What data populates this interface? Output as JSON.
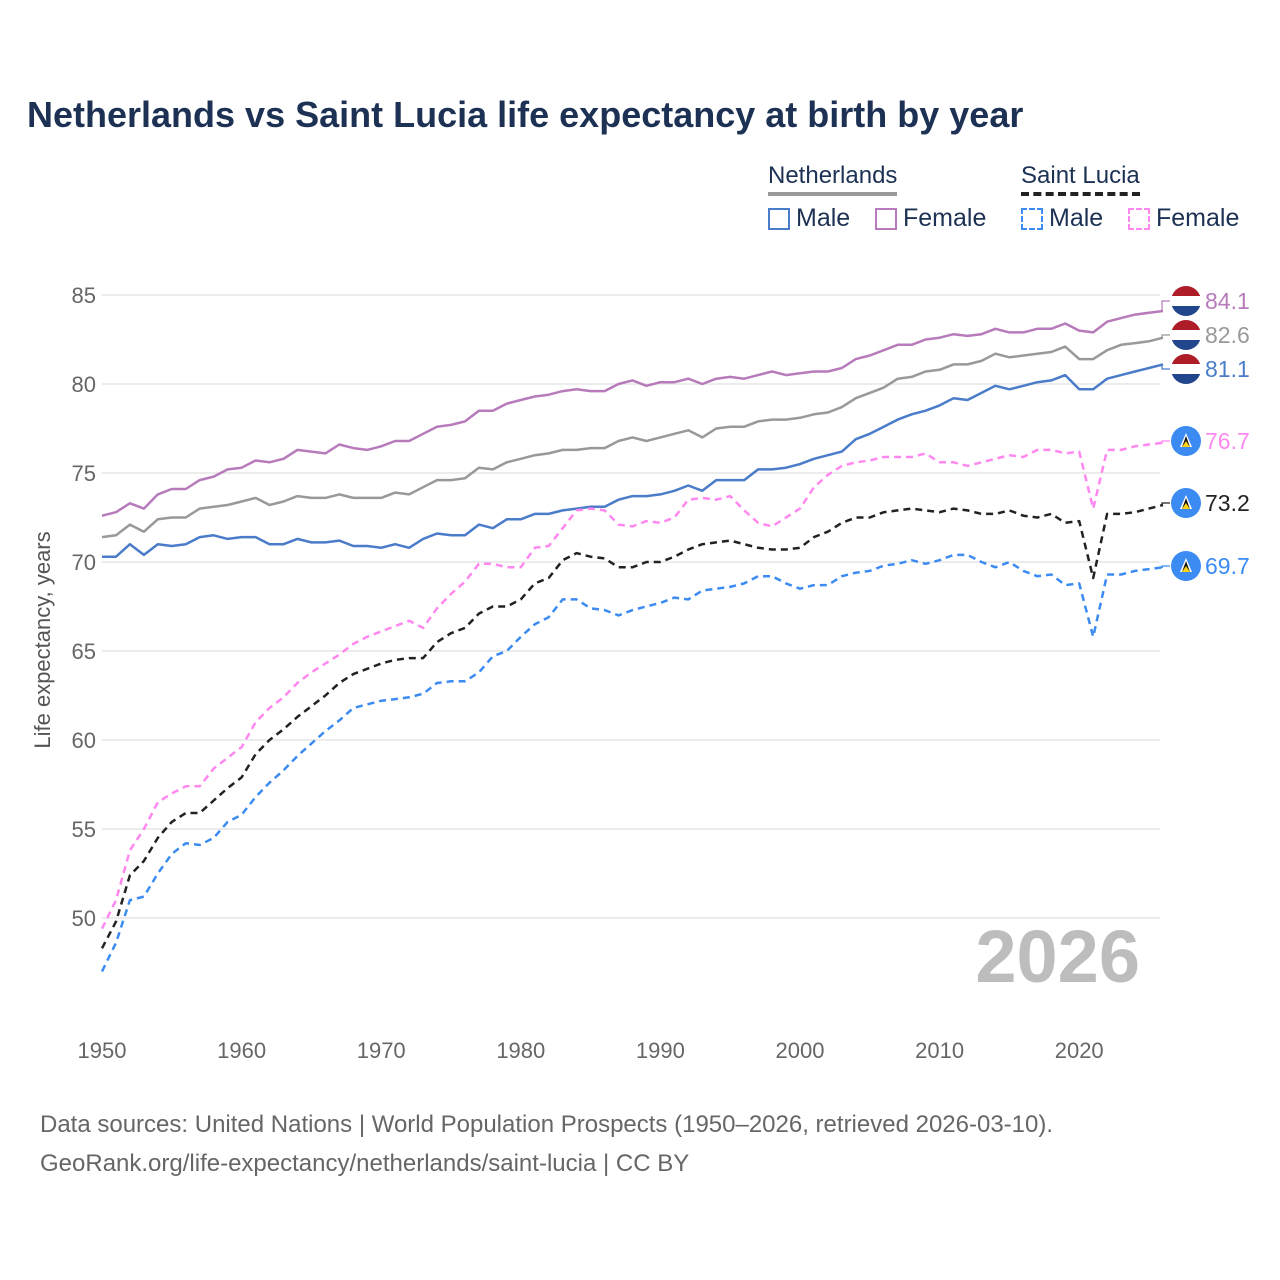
{
  "chart_data": {
    "type": "line",
    "title": "Netherlands vs Saint Lucia life expectancy at birth by year",
    "xlabel": "",
    "ylabel": "Life expectancy, years",
    "xlim": [
      1950,
      2026
    ],
    "ylim": [
      46,
      86
    ],
    "x_ticks": [
      "1950",
      "1960",
      "1970",
      "1980",
      "1990",
      "2000",
      "2010",
      "2020"
    ],
    "y_ticks": [
      "50",
      "55",
      "60",
      "65",
      "70",
      "75",
      "80",
      "85"
    ],
    "grid": true,
    "year_watermark": "2026",
    "legend": {
      "placement": "top-right",
      "groups": [
        {
          "name": "Netherlands",
          "items": [
            "Male",
            "Female"
          ]
        },
        {
          "name": "Saint Lucia",
          "items": [
            "Male",
            "Female"
          ]
        }
      ]
    },
    "series": [
      {
        "name": "Netherlands Female",
        "color": "#b77bbb",
        "dashed": false,
        "flag": "netherlands",
        "end_label": "84.1",
        "values": [
          72.6,
          72.8,
          73.3,
          73.0,
          73.8,
          74.1,
          74.1,
          74.6,
          74.8,
          75.2,
          75.3,
          75.7,
          75.6,
          75.8,
          76.3,
          76.2,
          76.1,
          76.6,
          76.4,
          76.3,
          76.5,
          76.8,
          76.8,
          77.2,
          77.6,
          77.7,
          77.9,
          78.5,
          78.5,
          78.9,
          79.1,
          79.3,
          79.4,
          79.6,
          79.7,
          79.6,
          79.6,
          80.0,
          80.2,
          79.9,
          80.1,
          80.1,
          80.3,
          80.0,
          80.3,
          80.4,
          80.3,
          80.5,
          80.7,
          80.5,
          80.6,
          80.7,
          80.7,
          80.9,
          81.4,
          81.6,
          81.9,
          82.2,
          82.2,
          82.5,
          82.6,
          82.8,
          82.7,
          82.8,
          83.1,
          82.9,
          82.9,
          83.1,
          83.1,
          83.4,
          83.0,
          82.9,
          83.5,
          83.7,
          83.9,
          84.0,
          84.1
        ]
      },
      {
        "name": "Netherlands Total",
        "color": "#999999",
        "dashed": false,
        "flag": "netherlands",
        "end_label": "82.6",
        "values": [
          71.4,
          71.5,
          72.1,
          71.7,
          72.4,
          72.5,
          72.5,
          73.0,
          73.1,
          73.2,
          73.4,
          73.6,
          73.2,
          73.4,
          73.7,
          73.6,
          73.6,
          73.8,
          73.6,
          73.6,
          73.6,
          73.9,
          73.8,
          74.2,
          74.6,
          74.6,
          74.7,
          75.3,
          75.2,
          75.6,
          75.8,
          76.0,
          76.1,
          76.3,
          76.3,
          76.4,
          76.4,
          76.8,
          77.0,
          76.8,
          77.0,
          77.2,
          77.4,
          77.0,
          77.5,
          77.6,
          77.6,
          77.9,
          78.0,
          78.0,
          78.1,
          78.3,
          78.4,
          78.7,
          79.2,
          79.5,
          79.8,
          80.3,
          80.4,
          80.7,
          80.8,
          81.1,
          81.1,
          81.3,
          81.7,
          81.5,
          81.6,
          81.7,
          81.8,
          82.1,
          81.4,
          81.4,
          81.9,
          82.2,
          82.3,
          82.4,
          82.6
        ]
      },
      {
        "name": "Netherlands Male",
        "color": "#4a7cc9",
        "dashed": false,
        "flag": "netherlands",
        "end_label": "81.1",
        "values": [
          70.3,
          70.3,
          71.0,
          70.4,
          71.0,
          70.9,
          71.0,
          71.4,
          71.5,
          71.3,
          71.4,
          71.4,
          71.0,
          71.0,
          71.3,
          71.1,
          71.1,
          71.2,
          70.9,
          70.9,
          70.8,
          71.0,
          70.8,
          71.3,
          71.6,
          71.5,
          71.5,
          72.1,
          71.9,
          72.4,
          72.4,
          72.7,
          72.7,
          72.9,
          73.0,
          73.1,
          73.1,
          73.5,
          73.7,
          73.7,
          73.8,
          74.0,
          74.3,
          74.0,
          74.6,
          74.6,
          74.6,
          75.2,
          75.2,
          75.3,
          75.5,
          75.8,
          76.0,
          76.2,
          76.9,
          77.2,
          77.6,
          78.0,
          78.3,
          78.5,
          78.8,
          79.2,
          79.1,
          79.5,
          79.9,
          79.7,
          79.9,
          80.1,
          80.2,
          80.5,
          79.7,
          79.7,
          80.3,
          80.5,
          80.7,
          80.9,
          81.1
        ]
      },
      {
        "name": "Saint Lucia Female",
        "color": "#ff88f0",
        "dashed": true,
        "flag": "saint-lucia",
        "end_label": "76.7",
        "values": [
          49.4,
          51.0,
          53.8,
          55.0,
          56.5,
          57.0,
          57.4,
          57.4,
          58.4,
          59.0,
          59.6,
          61.0,
          61.8,
          62.4,
          63.2,
          63.8,
          64.3,
          64.8,
          65.4,
          65.8,
          66.1,
          66.4,
          66.7,
          66.3,
          67.4,
          68.2,
          68.9,
          69.9,
          69.9,
          69.7,
          69.7,
          70.8,
          70.9,
          71.9,
          72.9,
          73.0,
          72.9,
          72.1,
          72.0,
          72.3,
          72.2,
          72.5,
          73.5,
          73.6,
          73.5,
          73.7,
          72.9,
          72.2,
          72.0,
          72.5,
          73.0,
          74.2,
          74.9,
          75.4,
          75.6,
          75.7,
          75.9,
          75.9,
          75.9,
          76.1,
          75.6,
          75.6,
          75.4,
          75.6,
          75.8,
          76.0,
          75.9,
          76.3,
          76.3,
          76.1,
          76.2,
          73.0,
          76.3,
          76.3,
          76.5,
          76.6,
          76.7
        ]
      },
      {
        "name": "Saint Lucia Total",
        "color": "#222222",
        "dashed": true,
        "flag": "saint-lucia",
        "end_label": "73.2",
        "values": [
          48.3,
          49.8,
          52.4,
          53.2,
          54.5,
          55.4,
          55.9,
          55.9,
          56.6,
          57.3,
          57.9,
          59.2,
          60.0,
          60.6,
          61.3,
          61.9,
          62.5,
          63.2,
          63.7,
          64.0,
          64.3,
          64.5,
          64.6,
          64.6,
          65.5,
          66.0,
          66.3,
          67.1,
          67.5,
          67.5,
          67.9,
          68.8,
          69.1,
          70.1,
          70.5,
          70.3,
          70.2,
          69.7,
          69.7,
          70.0,
          70.0,
          70.3,
          70.7,
          71.0,
          71.1,
          71.2,
          71.0,
          70.8,
          70.7,
          70.7,
          70.8,
          71.4,
          71.7,
          72.2,
          72.5,
          72.5,
          72.8,
          72.9,
          73.0,
          72.9,
          72.8,
          73.0,
          72.9,
          72.7,
          72.7,
          72.9,
          72.6,
          72.5,
          72.7,
          72.2,
          72.3,
          69.1,
          72.7,
          72.7,
          72.8,
          73.0,
          73.2
        ]
      },
      {
        "name": "Saint Lucia Male",
        "color": "#3b8bf3",
        "dashed": true,
        "flag": "saint-lucia",
        "end_label": "69.7",
        "values": [
          47.0,
          48.6,
          51.0,
          51.2,
          52.5,
          53.6,
          54.2,
          54.1,
          54.5,
          55.4,
          55.8,
          56.8,
          57.6,
          58.3,
          59.1,
          59.8,
          60.5,
          61.1,
          61.8,
          62.0,
          62.2,
          62.3,
          62.4,
          62.6,
          63.2,
          63.3,
          63.3,
          63.8,
          64.7,
          65.0,
          65.8,
          66.5,
          66.9,
          67.9,
          67.9,
          67.4,
          67.3,
          67.0,
          67.3,
          67.5,
          67.7,
          68.0,
          67.9,
          68.4,
          68.5,
          68.6,
          68.8,
          69.2,
          69.2,
          68.8,
          68.5,
          68.7,
          68.7,
          69.2,
          69.4,
          69.5,
          69.8,
          69.9,
          70.1,
          69.9,
          70.1,
          70.4,
          70.4,
          70.0,
          69.7,
          70.0,
          69.5,
          69.2,
          69.3,
          68.7,
          68.8,
          65.8,
          69.3,
          69.3,
          69.5,
          69.6,
          69.7
        ]
      }
    ]
  },
  "footer": {
    "line1": "Data sources: United Nations | World Population Prospects (1950–2026, retrieved 2026-03-10).",
    "line2": "GeoRank.org/life-expectancy/netherlands/saint-lucia | CC BY"
  }
}
